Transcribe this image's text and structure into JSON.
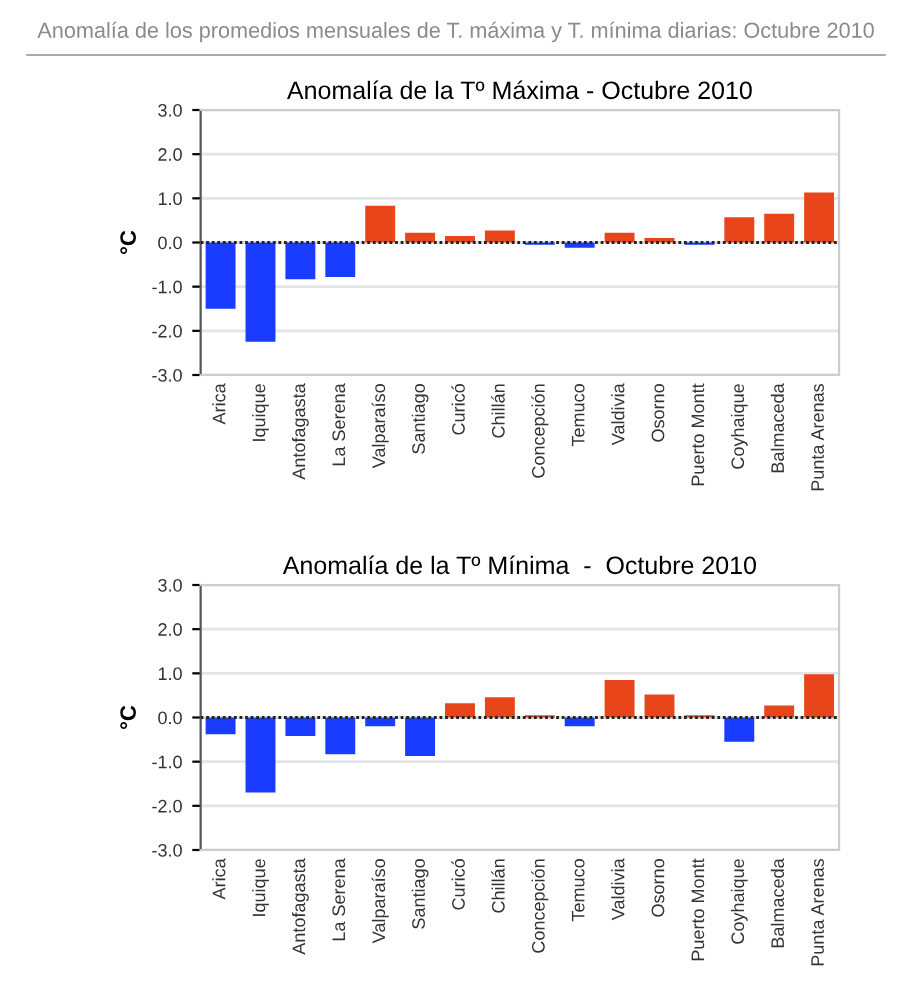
{
  "chart_data": [
    {
      "type": "bar",
      "title": "Anomalía de la Tº Máxima - Octubre 2010",
      "ylabel": "°C",
      "annotations": [
        "Anomalía de los promedios mensuales de T. máxima y T. mínima diarias: Octubre 2010"
      ],
      "categories": [
        "Arica",
        "Iquique",
        "Antofagasta",
        "La Serena",
        "Valparaíso",
        "Santiago",
        "Curicó",
        "Chillán",
        "Concepción",
        "Temuco",
        "Valdivia",
        "Osorno",
        "Puerto Montt",
        "Coyhaique",
        "Balmaceda",
        "Punta Arenas"
      ],
      "values": [
        -1.5,
        -2.25,
        -0.83,
        -0.78,
        0.83,
        0.22,
        0.15,
        0.27,
        -0.05,
        -0.12,
        0.22,
        0.1,
        -0.05,
        0.57,
        0.65,
        1.13
      ],
      "colors": [
        "#1a3cff",
        "#1a3cff",
        "#1a3cff",
        "#1a3cff",
        "#e8461a",
        "#e8461a",
        "#e8461a",
        "#e8461a",
        "#1a3cff",
        "#1a3cff",
        "#e8461a",
        "#e8461a",
        "#1a3cff",
        "#e8461a",
        "#e8461a",
        "#e8461a"
      ],
      "ylim": [
        -3,
        3
      ],
      "yticks": [
        {
          "value": -3,
          "label": "-3.0"
        },
        {
          "value": -2,
          "label": "-2.0"
        },
        {
          "value": -1,
          "label": "-1.0"
        },
        {
          "value": 0,
          "label": "0.0"
        },
        {
          "value": 1,
          "label": "1.0"
        },
        {
          "value": 2,
          "label": "2.0"
        },
        {
          "value": 3,
          "label": "3.0"
        }
      ],
      "grid": "y",
      "ref_lines": [
        {
          "axis": "y",
          "value": 0,
          "color": "#222222",
          "line_style": "dotted"
        }
      ]
    },
    {
      "type": "bar",
      "title": "Anomalía de la Tº Mínima  -  Octubre 2010",
      "ylabel": "°C",
      "categories": [
        "Arica",
        "Iquique",
        "Antofagasta",
        "La Serena",
        "Valparaíso",
        "Santiago",
        "Curicó",
        "Chillán",
        "Concepción",
        "Temuco",
        "Valdivia",
        "Osorno",
        "Puerto Montt",
        "Coyhaique",
        "Balmaceda",
        "Punta Arenas"
      ],
      "values": [
        -0.38,
        -1.7,
        -0.42,
        -0.83,
        -0.2,
        -0.87,
        0.32,
        0.46,
        0.05,
        -0.2,
        0.85,
        0.52,
        0.05,
        -0.55,
        0.27,
        0.98
      ],
      "colors": [
        "#1a3cff",
        "#1a3cff",
        "#1a3cff",
        "#1a3cff",
        "#1a3cff",
        "#1a3cff",
        "#e8461a",
        "#e8461a",
        "#e8461a",
        "#1a3cff",
        "#e8461a",
        "#e8461a",
        "#e8461a",
        "#1a3cff",
        "#e8461a",
        "#e8461a"
      ],
      "ylim": [
        -3,
        3
      ],
      "yticks": [
        {
          "value": -3,
          "label": "-3.0"
        },
        {
          "value": -2,
          "label": "-2.0"
        },
        {
          "value": -1,
          "label": "-1.0"
        },
        {
          "value": 0,
          "label": "0.0"
        },
        {
          "value": 1,
          "label": "1.0"
        },
        {
          "value": 2,
          "label": "2.0"
        },
        {
          "value": 3,
          "label": "3.0"
        }
      ],
      "grid": "y",
      "ref_lines": [
        {
          "axis": "y",
          "value": 0,
          "color": "#222222",
          "line_style": "dotted"
        }
      ]
    }
  ]
}
